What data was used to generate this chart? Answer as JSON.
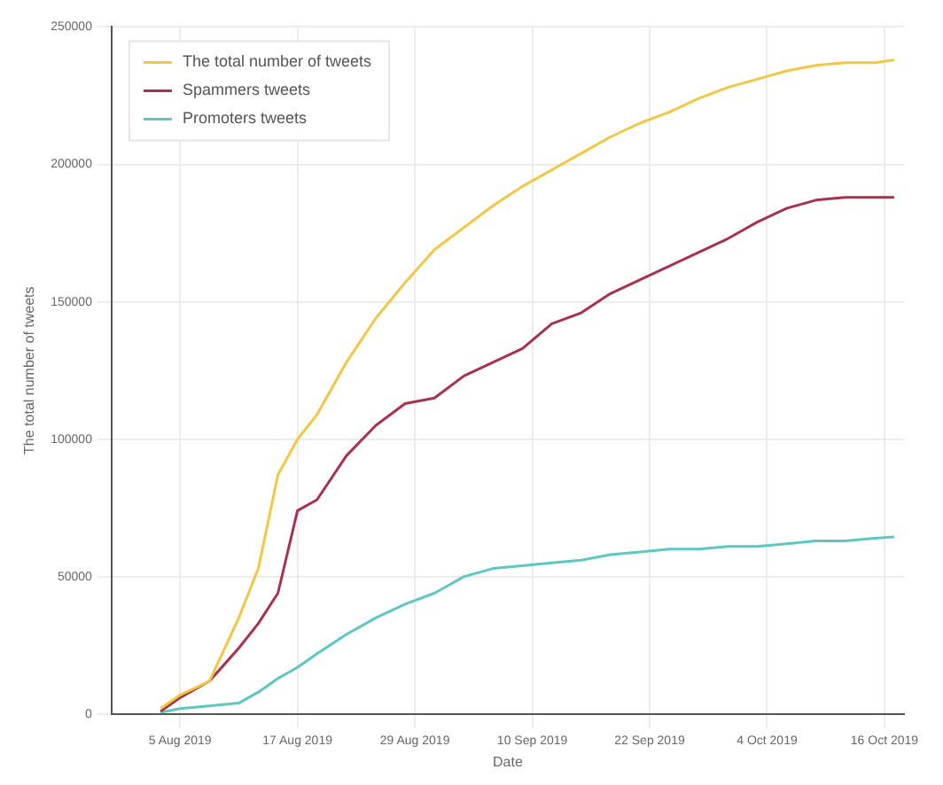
{
  "chart_data": {
    "type": "line",
    "xlabel": "Date",
    "ylabel": "The total number of tweets",
    "x": [
      "2019-08-03",
      "2019-08-05",
      "2019-08-08",
      "2019-08-11",
      "2019-08-13",
      "2019-08-15",
      "2019-08-17",
      "2019-08-19",
      "2019-08-22",
      "2019-08-25",
      "2019-08-28",
      "2019-08-31",
      "2019-09-03",
      "2019-09-06",
      "2019-09-09",
      "2019-09-12",
      "2019-09-15",
      "2019-09-18",
      "2019-09-21",
      "2019-09-24",
      "2019-09-27",
      "2019-09-30",
      "2019-10-03",
      "2019-10-06",
      "2019-10-09",
      "2019-10-12",
      "2019-10-15",
      "2019-10-17"
    ],
    "series": [
      {
        "name": "The total number of tweets",
        "color": "#f2c744",
        "values": [
          2000,
          7000,
          12000,
          35000,
          53000,
          87000,
          100000,
          109000,
          128000,
          144000,
          157000,
          169000,
          177000,
          185000,
          192000,
          198000,
          204000,
          210000,
          215000,
          219000,
          224000,
          228000,
          231000,
          234000,
          236000,
          237000,
          237000,
          238000
        ]
      },
      {
        "name": "Spammers tweets",
        "color": "#a8324e",
        "values": [
          1000,
          6000,
          12000,
          24000,
          33000,
          44000,
          74000,
          78000,
          94000,
          105000,
          113000,
          115000,
          123000,
          128000,
          133000,
          142000,
          146000,
          153000,
          158000,
          163000,
          168000,
          173000,
          179000,
          184000,
          187000,
          188000,
          188000,
          188000
        ]
      },
      {
        "name": "Promoters tweets",
        "color": "#5cc8c0",
        "values": [
          600,
          2000,
          3000,
          4000,
          8000,
          13000,
          17000,
          22000,
          29000,
          35000,
          40000,
          44000,
          50000,
          53000,
          54000,
          55000,
          56000,
          58000,
          59000,
          60000,
          60000,
          61000,
          61000,
          62000,
          63000,
          63000,
          64000,
          64500
        ]
      }
    ],
    "xlim": [
      "2019-07-29",
      "2019-10-18"
    ],
    "xticks": [
      {
        "value": "2019-08-05",
        "label": "5 Aug 2019"
      },
      {
        "value": "2019-08-17",
        "label": "17 Aug 2019"
      },
      {
        "value": "2019-08-29",
        "label": "29 Aug 2019"
      },
      {
        "value": "2019-09-10",
        "label": "10 Sep 2019"
      },
      {
        "value": "2019-09-22",
        "label": "22 Sep 2019"
      },
      {
        "value": "2019-10-04",
        "label": "4 Oct 2019"
      },
      {
        "value": "2019-10-16",
        "label": "16 Oct 2019"
      }
    ],
    "ylim": [
      0,
      250000
    ],
    "yticks": [
      0,
      50000,
      100000,
      150000,
      200000,
      250000
    ],
    "grid": true,
    "legend": "top left",
    "marker": "none",
    "line_style": "solid"
  }
}
